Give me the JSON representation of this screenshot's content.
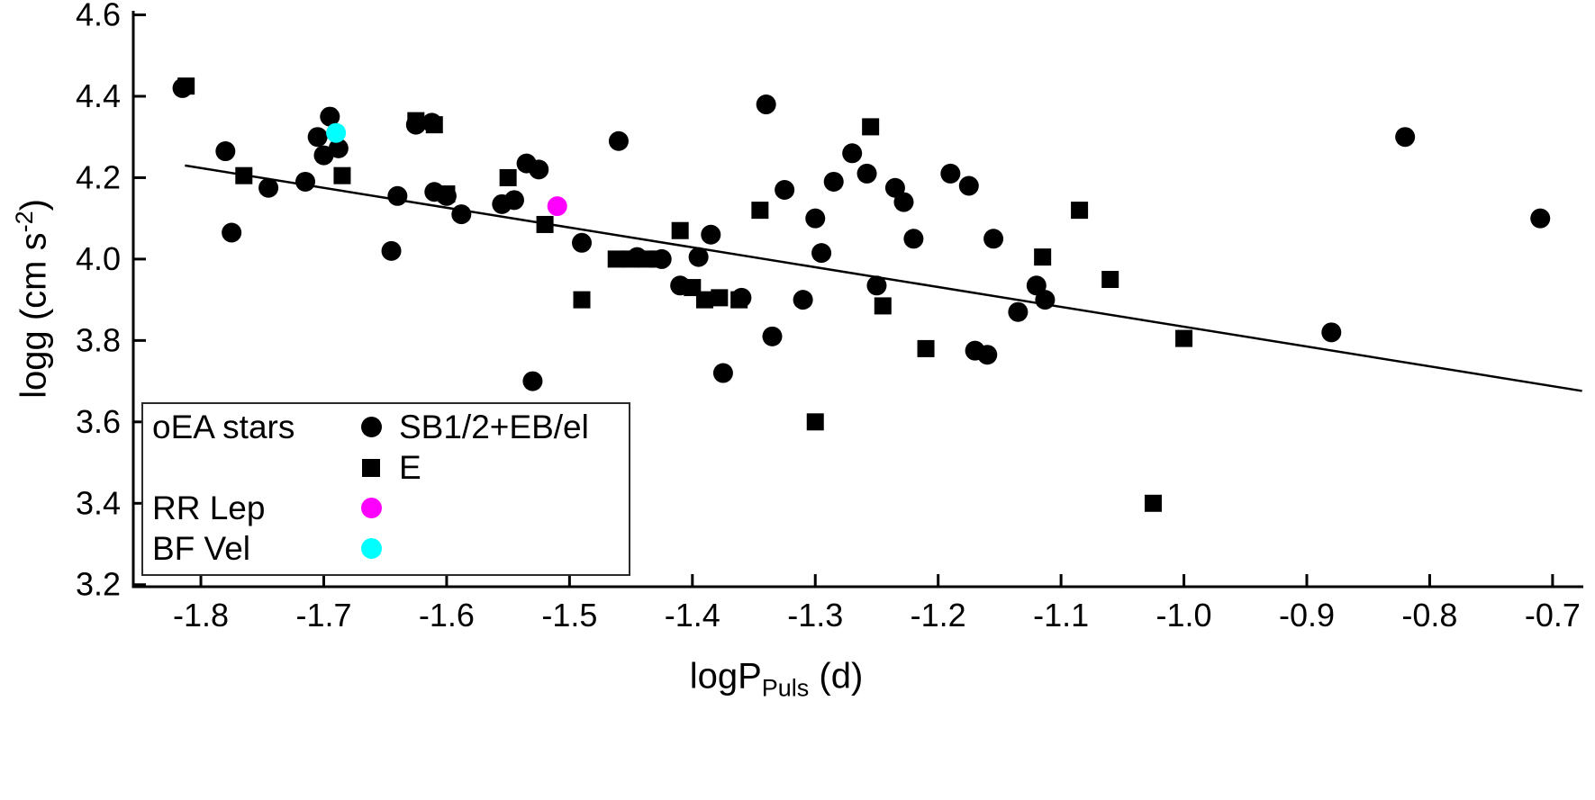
{
  "chart_data": {
    "type": "scatter",
    "title": "",
    "xlabel": {
      "pre": "logP",
      "sub": "Puls",
      "post": " (d)"
    },
    "ylabel": {
      "pre": "logg (cm s",
      "sup": "-2",
      "post": ")"
    },
    "xlim": [
      -1.855,
      -0.675
    ],
    "ylim": [
      3.195,
      4.61
    ],
    "x_ticks": [
      -1.8,
      -1.7,
      -1.6,
      -1.5,
      -1.4,
      -1.3,
      -1.2,
      -1.1,
      -1.0,
      -0.9,
      -0.8,
      -0.7
    ],
    "y_ticks": [
      3.2,
      3.4,
      3.6,
      3.8,
      4.0,
      4.2,
      4.4,
      4.6
    ],
    "grid": false,
    "legend_position": "lower-left",
    "series": [
      {
        "name": "SB1/2+EB/el",
        "marker": "circle",
        "color": "#000000",
        "points": [
          [
            -1.815,
            4.42
          ],
          [
            -1.78,
            4.265
          ],
          [
            -1.775,
            4.065
          ],
          [
            -1.745,
            4.175
          ],
          [
            -1.715,
            4.19
          ],
          [
            -1.705,
            4.3
          ],
          [
            -1.695,
            4.35
          ],
          [
            -1.7,
            4.255
          ],
          [
            -1.688,
            4.272
          ],
          [
            -1.645,
            4.02
          ],
          [
            -1.64,
            4.155
          ],
          [
            -1.625,
            4.33
          ],
          [
            -1.612,
            4.335
          ],
          [
            -1.61,
            4.165
          ],
          [
            -1.6,
            4.155
          ],
          [
            -1.588,
            4.11
          ],
          [
            -1.555,
            4.135
          ],
          [
            -1.545,
            4.145
          ],
          [
            -1.535,
            4.235
          ],
          [
            -1.525,
            4.22
          ],
          [
            -1.53,
            3.7
          ],
          [
            -1.49,
            4.04
          ],
          [
            -1.46,
            4.29
          ],
          [
            -1.445,
            4.005
          ],
          [
            -1.425,
            4.0
          ],
          [
            -1.41,
            3.935
          ],
          [
            -1.395,
            4.005
          ],
          [
            -1.385,
            4.06
          ],
          [
            -1.375,
            3.72
          ],
          [
            -1.36,
            3.905
          ],
          [
            -1.34,
            4.38
          ],
          [
            -1.335,
            3.81
          ],
          [
            -1.325,
            4.17
          ],
          [
            -1.31,
            3.9
          ],
          [
            -1.3,
            4.1
          ],
          [
            -1.295,
            4.015
          ],
          [
            -1.285,
            4.19
          ],
          [
            -1.27,
            4.26
          ],
          [
            -1.258,
            4.21
          ],
          [
            -1.25,
            3.935
          ],
          [
            -1.235,
            4.175
          ],
          [
            -1.228,
            4.14
          ],
          [
            -1.22,
            4.05
          ],
          [
            -1.19,
            4.21
          ],
          [
            -1.175,
            4.18
          ],
          [
            -1.17,
            3.775
          ],
          [
            -1.16,
            3.765
          ],
          [
            -1.155,
            4.05
          ],
          [
            -1.135,
            3.87
          ],
          [
            -1.12,
            3.935
          ],
          [
            -1.113,
            3.9
          ],
          [
            -0.88,
            3.82
          ],
          [
            -0.82,
            4.3
          ],
          [
            -0.71,
            4.1
          ]
        ]
      },
      {
        "name": "E",
        "marker": "square",
        "color": "#000000",
        "points": [
          [
            -1.812,
            4.425
          ],
          [
            -1.765,
            4.205
          ],
          [
            -1.685,
            4.205
          ],
          [
            -1.625,
            4.34
          ],
          [
            -1.61,
            4.33
          ],
          [
            -1.6,
            4.16
          ],
          [
            -1.55,
            4.2
          ],
          [
            -1.52,
            4.085
          ],
          [
            -1.49,
            3.9
          ],
          [
            -1.462,
            4.0
          ],
          [
            -1.45,
            4.0
          ],
          [
            -1.438,
            4.0
          ],
          [
            -1.428,
            4.0
          ],
          [
            -1.41,
            4.07
          ],
          [
            -1.4,
            3.93
          ],
          [
            -1.39,
            3.9
          ],
          [
            -1.378,
            3.905
          ],
          [
            -1.362,
            3.9
          ],
          [
            -1.345,
            4.12
          ],
          [
            -1.3,
            3.6
          ],
          [
            -1.255,
            4.325
          ],
          [
            -1.245,
            3.885
          ],
          [
            -1.21,
            3.78
          ],
          [
            -1.115,
            4.005
          ],
          [
            -1.085,
            4.12
          ],
          [
            -1.06,
            3.95
          ],
          [
            -1.025,
            3.4
          ],
          [
            -1.0,
            3.805
          ]
        ]
      },
      {
        "name": "RR Lep",
        "marker": "circle",
        "color": "#FF00FF",
        "points": [
          [
            -1.51,
            4.13
          ]
        ]
      },
      {
        "name": "BF Vel",
        "marker": "circle",
        "color": "#00FFFF",
        "points": [
          [
            -1.69,
            4.31
          ]
        ]
      }
    ],
    "trend_line": {
      "x1": -1.813,
      "y1": 4.23,
      "x2": -0.676,
      "y2": 3.676,
      "color": "#000000"
    }
  },
  "legend": {
    "group_label": "oEA stars",
    "series1_label": "SB1/2+EB/el",
    "series2_label": "E",
    "rrlep_label": "RR Lep",
    "bfvel_label": "BF Vel"
  }
}
